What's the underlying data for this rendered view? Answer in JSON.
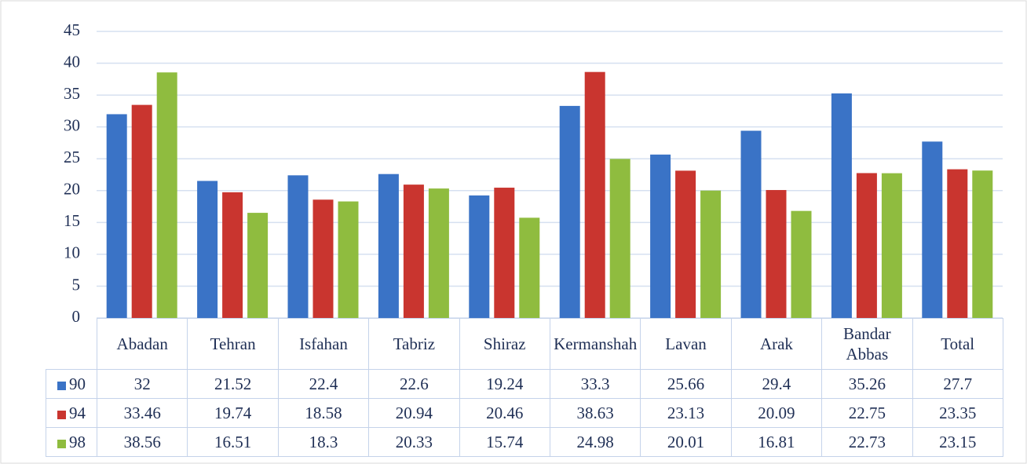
{
  "chart_data": {
    "type": "bar",
    "categories": [
      "Abadan",
      "Tehran",
      "Isfahan",
      "Tabriz",
      "Shiraz",
      "Kermanshah",
      "Lavan",
      "Arak",
      "Bandar Abbas",
      "Total"
    ],
    "series": [
      {
        "name": "90",
        "color": "#3a73c6",
        "values": [
          32,
          21.52,
          22.4,
          22.6,
          19.24,
          33.3,
          25.66,
          29.4,
          35.26,
          27.7
        ]
      },
      {
        "name": "94",
        "color": "#c9352f",
        "values": [
          33.46,
          19.74,
          18.58,
          20.94,
          20.46,
          38.63,
          23.13,
          20.09,
          22.75,
          23.35
        ]
      },
      {
        "name": "98",
        "color": "#8fbc3f",
        "values": [
          38.56,
          16.51,
          18.3,
          20.33,
          15.74,
          24.98,
          20.01,
          16.81,
          22.73,
          23.15
        ]
      }
    ],
    "ylim": [
      0,
      45
    ],
    "yticks": [
      0,
      5,
      10,
      15,
      20,
      25,
      30,
      35,
      40,
      45
    ],
    "grid": true,
    "data_table": true
  }
}
